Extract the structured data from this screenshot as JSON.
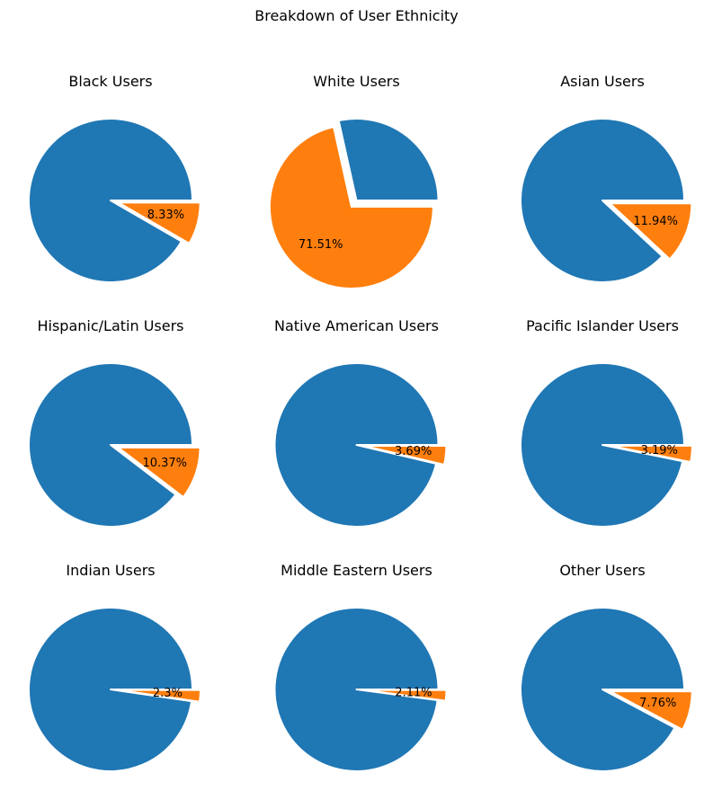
{
  "figure": {
    "title": "Breakdown of User Ethnicity"
  },
  "colors": {
    "remainder": "#1f77b4",
    "highlight": "#ff7f0e",
    "edge": "#ffffff"
  },
  "chart_data": [
    {
      "type": "pie",
      "title": "Black Users",
      "values": [
        91.67,
        8.33
      ],
      "labels": [
        "",
        "8.33%"
      ],
      "explode_index": 1
    },
    {
      "type": "pie",
      "title": "White Users",
      "values": [
        28.49,
        71.51
      ],
      "labels": [
        "",
        "71.51%"
      ],
      "explode_index": 1
    },
    {
      "type": "pie",
      "title": "Asian Users",
      "values": [
        88.06,
        11.94
      ],
      "labels": [
        "",
        "11.94%"
      ],
      "explode_index": 1
    },
    {
      "type": "pie",
      "title": "Hispanic/Latin Users",
      "values": [
        89.63,
        10.37
      ],
      "labels": [
        "",
        "10.37%"
      ],
      "explode_index": 1
    },
    {
      "type": "pie",
      "title": "Native American Users",
      "values": [
        96.31,
        3.69
      ],
      "labels": [
        "",
        "3.69%"
      ],
      "explode_index": 1
    },
    {
      "type": "pie",
      "title": "Pacific Islander Users",
      "values": [
        96.81,
        3.19
      ],
      "labels": [
        "",
        "3.19%"
      ],
      "explode_index": 1
    },
    {
      "type": "pie",
      "title": "Indian Users",
      "values": [
        97.7,
        2.3
      ],
      "labels": [
        "",
        "2.3%"
      ],
      "explode_index": 1
    },
    {
      "type": "pie",
      "title": "Middle Eastern Users",
      "values": [
        97.89,
        2.11
      ],
      "labels": [
        "",
        "2.11%"
      ],
      "explode_index": 1
    },
    {
      "type": "pie",
      "title": "Other Users",
      "values": [
        92.24,
        7.76
      ],
      "labels": [
        "",
        "7.76%"
      ],
      "explode_index": 1
    }
  ]
}
